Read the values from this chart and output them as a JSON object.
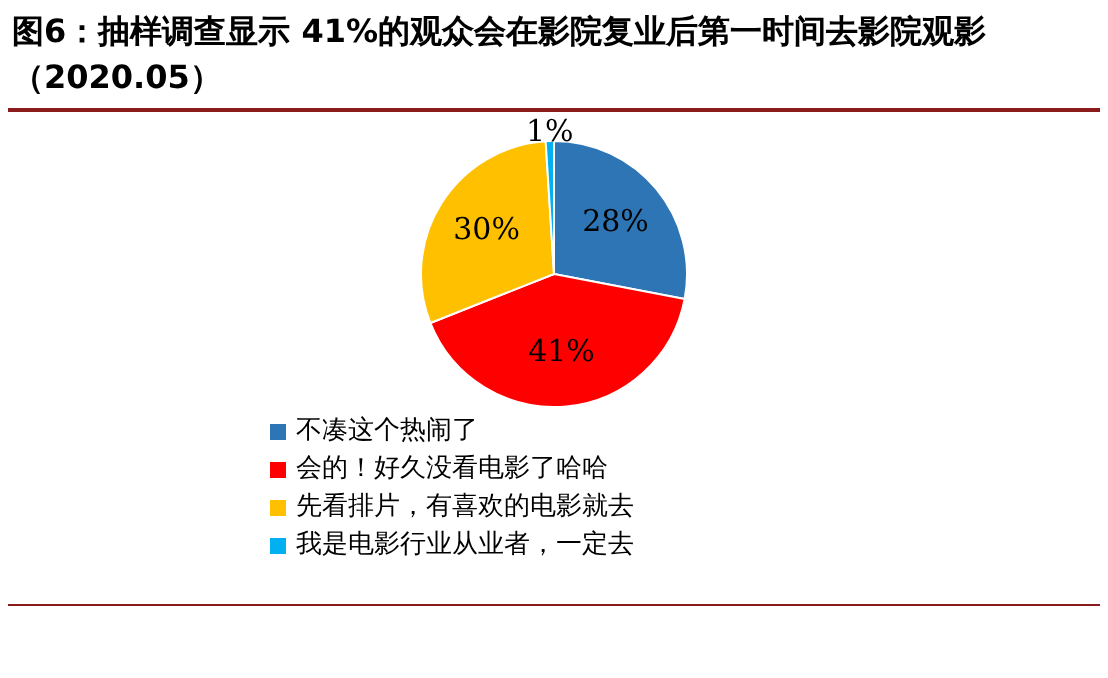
{
  "chart_data": {
    "type": "pie",
    "title": "图6：抽样调查显示 41%的观众会在影院复业后第一时间去影院观影（2020.05）",
    "categories": [
      "不凑这个热闹了",
      "会的！好久没看电影了哈哈",
      "先看排片，有喜欢的电影就去",
      "我是电影行业从业者，一定去"
    ],
    "values": [
      28,
      41,
      30,
      1
    ],
    "colors": [
      "#2e75b6",
      "#ff0000",
      "#ffc000",
      "#00b0f0"
    ],
    "value_labels": [
      "28%",
      "41%",
      "30%",
      "1%"
    ],
    "legend": "bottom"
  }
}
